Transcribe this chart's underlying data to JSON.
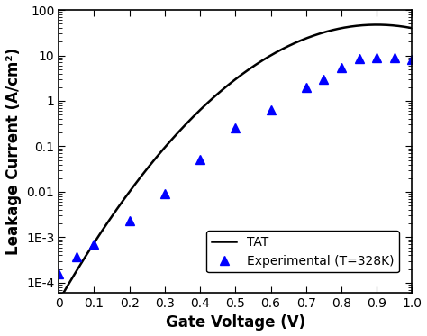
{
  "title": "",
  "xlabel": "Gate Voltage (V)",
  "ylabel": "Leakage Current (A/cm²)",
  "xlim": [
    0.0,
    1.0
  ],
  "ylim_log": [
    6e-05,
    100
  ],
  "xticks": [
    0.0,
    0.1,
    0.2,
    0.3,
    0.4,
    0.5,
    0.6,
    0.7,
    0.8,
    0.9,
    1.0
  ],
  "yticks": [
    0.0001,
    0.001,
    0.01,
    0.1,
    1,
    10,
    100
  ],
  "ytick_labels": [
    "1E-4",
    "1E-3",
    "0.01",
    "0.1",
    "1",
    "10",
    "100"
  ],
  "exp_x": [
    0.0,
    0.05,
    0.1,
    0.2,
    0.3,
    0.4,
    0.5,
    0.6,
    0.7,
    0.75,
    0.8,
    0.85,
    0.9,
    0.95,
    1.0
  ],
  "exp_y": [
    0.00016,
    0.00038,
    0.0007,
    0.0023,
    0.009,
    0.052,
    0.25,
    0.62,
    2.0,
    3.0,
    5.5,
    8.5,
    9.0,
    9.0,
    8.0
  ],
  "line_color": "black",
  "marker_color": "blue",
  "marker_style": "^",
  "legend_line": "TAT",
  "legend_marker": "Experimental (T=328K)",
  "background_color": "white",
  "xlabel_fontsize": 12,
  "ylabel_fontsize": 12,
  "legend_fontsize": 10,
  "tick_fontsize": 10
}
